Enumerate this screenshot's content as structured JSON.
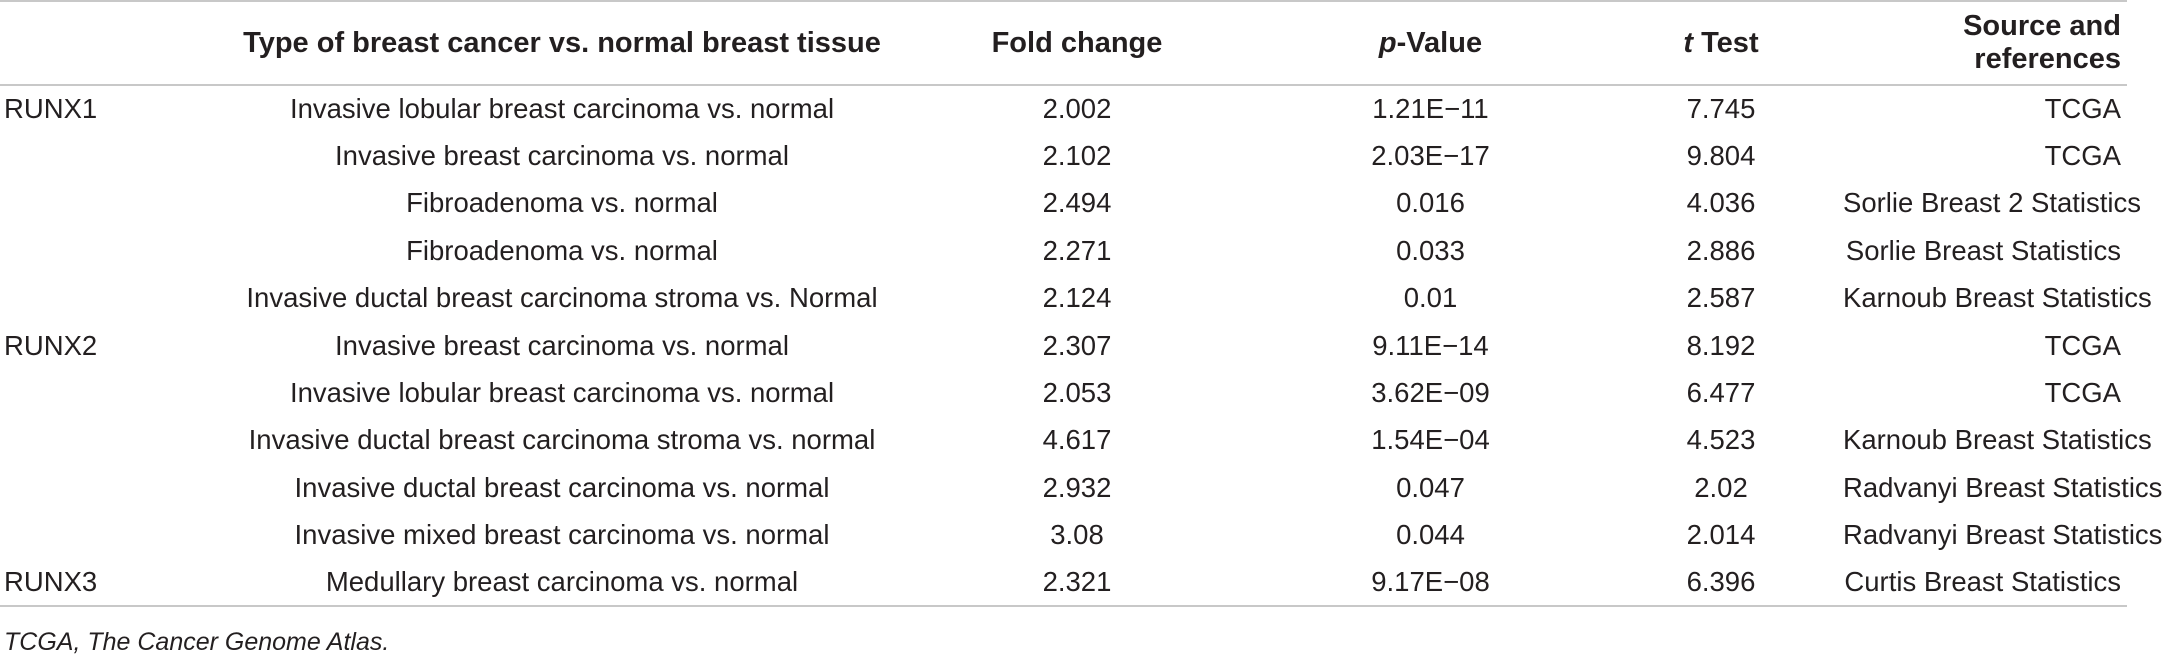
{
  "table": {
    "headers": {
      "gene": "",
      "type": "Type of breast cancer vs. normal breast tissue",
      "fold_change": "Fold change",
      "p_value_italic": "p",
      "p_value_rest": "-Value",
      "t_test_italic": "t",
      "t_test_rest": " Test",
      "source": "Source and references"
    },
    "rows": [
      {
        "gene": "RUNX1",
        "type": "Invasive lobular breast carcinoma vs. normal",
        "fold": "2.002",
        "p": "1.21E−11",
        "t": "7.745",
        "source": "TCGA"
      },
      {
        "gene": "",
        "type": "Invasive breast carcinoma vs. normal",
        "fold": "2.102",
        "p": "2.03E−17",
        "t": "9.804",
        "source": "TCGA"
      },
      {
        "gene": "",
        "type": "Fibroadenoma vs. normal",
        "fold": "2.494",
        "p": "0.016",
        "t": "4.036",
        "source": "Sorlie Breast 2 Statistics"
      },
      {
        "gene": "",
        "type": "Fibroadenoma vs. normal",
        "fold": "2.271",
        "p": "0.033",
        "t": "2.886",
        "source": "Sorlie Breast Statistics"
      },
      {
        "gene": "",
        "type": "Invasive ductal breast carcinoma stroma vs. Normal",
        "fold": "2.124",
        "p": "0.01",
        "t": "2.587",
        "source": "Karnoub Breast Statistics"
      },
      {
        "gene": "RUNX2",
        "type": "Invasive breast carcinoma vs. normal",
        "fold": "2.307",
        "p": "9.11E−14",
        "t": "8.192",
        "source": "TCGA"
      },
      {
        "gene": "",
        "type": "Invasive lobular breast carcinoma vs. normal",
        "fold": "2.053",
        "p": "3.62E−09",
        "t": "6.477",
        "source": "TCGA"
      },
      {
        "gene": "",
        "type": "Invasive ductal breast carcinoma stroma vs. normal",
        "fold": "4.617",
        "p": "1.54E−04",
        "t": "4.523",
        "source": "Karnoub Breast Statistics"
      },
      {
        "gene": "",
        "type": "Invasive ductal breast carcinoma vs. normal",
        "fold": "2.932",
        "p": "0.047",
        "t": "2.02",
        "source": "Radvanyi Breast Statistics"
      },
      {
        "gene": "",
        "type": "Invasive mixed breast carcinoma vs. normal",
        "fold": "3.08",
        "p": "0.044",
        "t": "2.014",
        "source": "Radvanyi Breast Statistics"
      },
      {
        "gene": "RUNX3",
        "type": "Medullary breast carcinoma vs. normal",
        "fold": "2.321",
        "p": "9.17E−08",
        "t": "6.396",
        "source": "Curtis Breast Statistics"
      }
    ]
  },
  "footnote": "TCGA, The Cancer Genome Atlas."
}
